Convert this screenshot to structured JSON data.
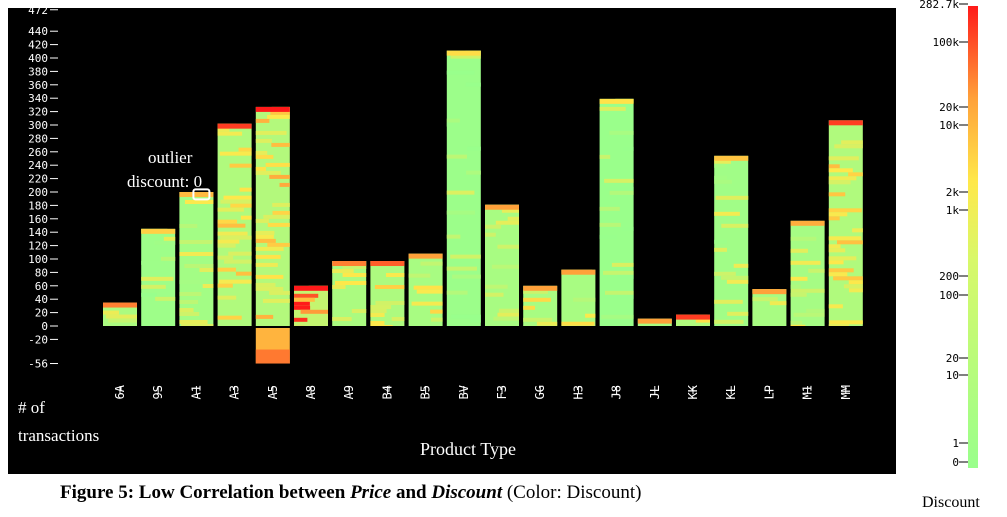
{
  "figure": {
    "caption_bold_1": "Figure 5: Low Correlation between ",
    "caption_italic_1": "Price",
    "caption_bold_2": " and ",
    "caption_italic_2": "Discount",
    "caption_regular": " (Color: Discount)"
  },
  "annotation": {
    "line1": "outlier",
    "line2": "discount: 0"
  },
  "colors": {
    "background": "#000000",
    "low": "#99ff8c",
    "mid": "#ffe84a",
    "high": "#ff1a1a",
    "outlier_box": "#ffffff"
  },
  "chart_data": {
    "type": "bar",
    "title": "",
    "xlabel": "Product Type",
    "ylabel": "# of transactions",
    "ylim": [
      -56,
      472
    ],
    "y_ticks": [
      -56,
      -20,
      0,
      20,
      40,
      60,
      80,
      100,
      120,
      140,
      160,
      180,
      200,
      220,
      240,
      260,
      280,
      300,
      320,
      340,
      360,
      380,
      400,
      420,
      440,
      472
    ],
    "categories": [
      "6A",
      "9S",
      "A1",
      "A3",
      "A5",
      "A8",
      "A9",
      "B4",
      "B5",
      "BV",
      "F3",
      "GG",
      "H3",
      "J8",
      "JL",
      "KK",
      "KL",
      "LP",
      "M1",
      "MM"
    ],
    "values": [
      35,
      145,
      200,
      302,
      327,
      60,
      97,
      97,
      108,
      411,
      181,
      60,
      84,
      339,
      11,
      17,
      254,
      55,
      157,
      307
    ],
    "negative_values": [
      0,
      0,
      0,
      0,
      -56,
      0,
      0,
      0,
      0,
      0,
      0,
      0,
      0,
      0,
      0,
      0,
      0,
      0,
      0,
      0
    ],
    "dominant_discount_level": [
      0.35,
      0.1,
      0.2,
      0.45,
      0.5,
      0.85,
      0.35,
      0.4,
      0.3,
      0.05,
      0.3,
      0.3,
      0.3,
      0.02,
      0.3,
      0.45,
      0.15,
      0.3,
      0.25,
      0.45
    ],
    "outlier": {
      "category": "A1",
      "y": 195,
      "discount": 0
    },
    "legend": {
      "title": "Discount",
      "scale": "log",
      "ticks": [
        "0",
        "1",
        "10",
        "20",
        "100",
        "200",
        "1k",
        "2k",
        "10k",
        "20k",
        "100k",
        "282.7k"
      ]
    }
  }
}
